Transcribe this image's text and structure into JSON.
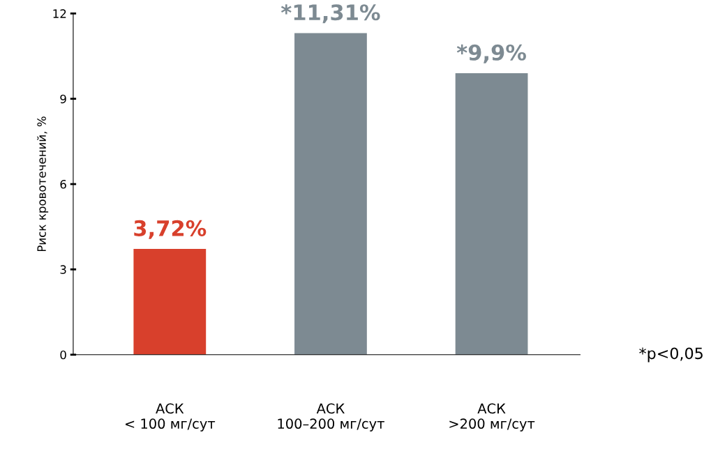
{
  "chart_data": {
    "type": "bar",
    "ylabel": "Риск кровотечений, %",
    "categories": [
      "АСК\n< 100 мг/сут",
      "АСК\n100–200 мг/сут",
      "АСК\n>200 мг/сут"
    ],
    "values": [
      3.72,
      11.31,
      9.9
    ],
    "colors": [
      "#d8402c",
      "#7d8a92",
      "#7d8a92"
    ],
    "value_labels": [
      "3,72%",
      "*11,31%",
      "*9,9%"
    ],
    "ylim": [
      0,
      12
    ],
    "yticks": [
      0,
      3,
      6,
      9,
      12
    ],
    "grid": false,
    "annotations": [
      "*p<0,05"
    ]
  }
}
